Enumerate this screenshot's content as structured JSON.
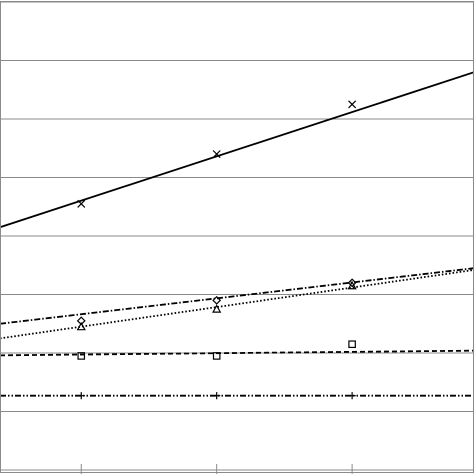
{
  "chart_data": {
    "type": "line",
    "x": [
      1,
      2,
      3
    ],
    "xlim": [
      0.4,
      3.9
    ],
    "ylim": [
      0,
      8
    ],
    "yticks": [
      0,
      1,
      2,
      3,
      4,
      5,
      6,
      7,
      8
    ],
    "grid": "horizontal",
    "legend": "none",
    "title": "",
    "xlabel": "",
    "ylabel": "",
    "series": [
      {
        "marker": "x",
        "line_style": "solid",
        "points": [
          4.55,
          5.4,
          6.25
        ],
        "trend": [
          [
            0.4,
            4.15
          ],
          [
            3.9,
            6.8
          ]
        ]
      },
      {
        "marker": "diamond",
        "line_style": "dash-dot",
        "points": [
          2.55,
          2.9,
          3.2
        ],
        "trend": [
          [
            0.4,
            2.5
          ],
          [
            3.9,
            3.45
          ]
        ]
      },
      {
        "marker": "triangle",
        "line_style": "dotted",
        "points": [
          2.45,
          2.75,
          3.15
        ],
        "trend": [
          [
            0.4,
            2.25
          ],
          [
            3.9,
            3.42
          ]
        ]
      },
      {
        "marker": "square",
        "line_style": "dashed",
        "points": [
          1.95,
          1.95,
          2.15
        ],
        "trend": [
          [
            0.4,
            1.96
          ],
          [
            3.9,
            2.04
          ]
        ]
      },
      {
        "marker": "plus",
        "line_style": "dash-dot-dot",
        "points": [
          1.27,
          1.27,
          1.27
        ],
        "trend": [
          [
            0.4,
            1.27
          ],
          [
            3.9,
            1.27
          ]
        ]
      }
    ]
  }
}
